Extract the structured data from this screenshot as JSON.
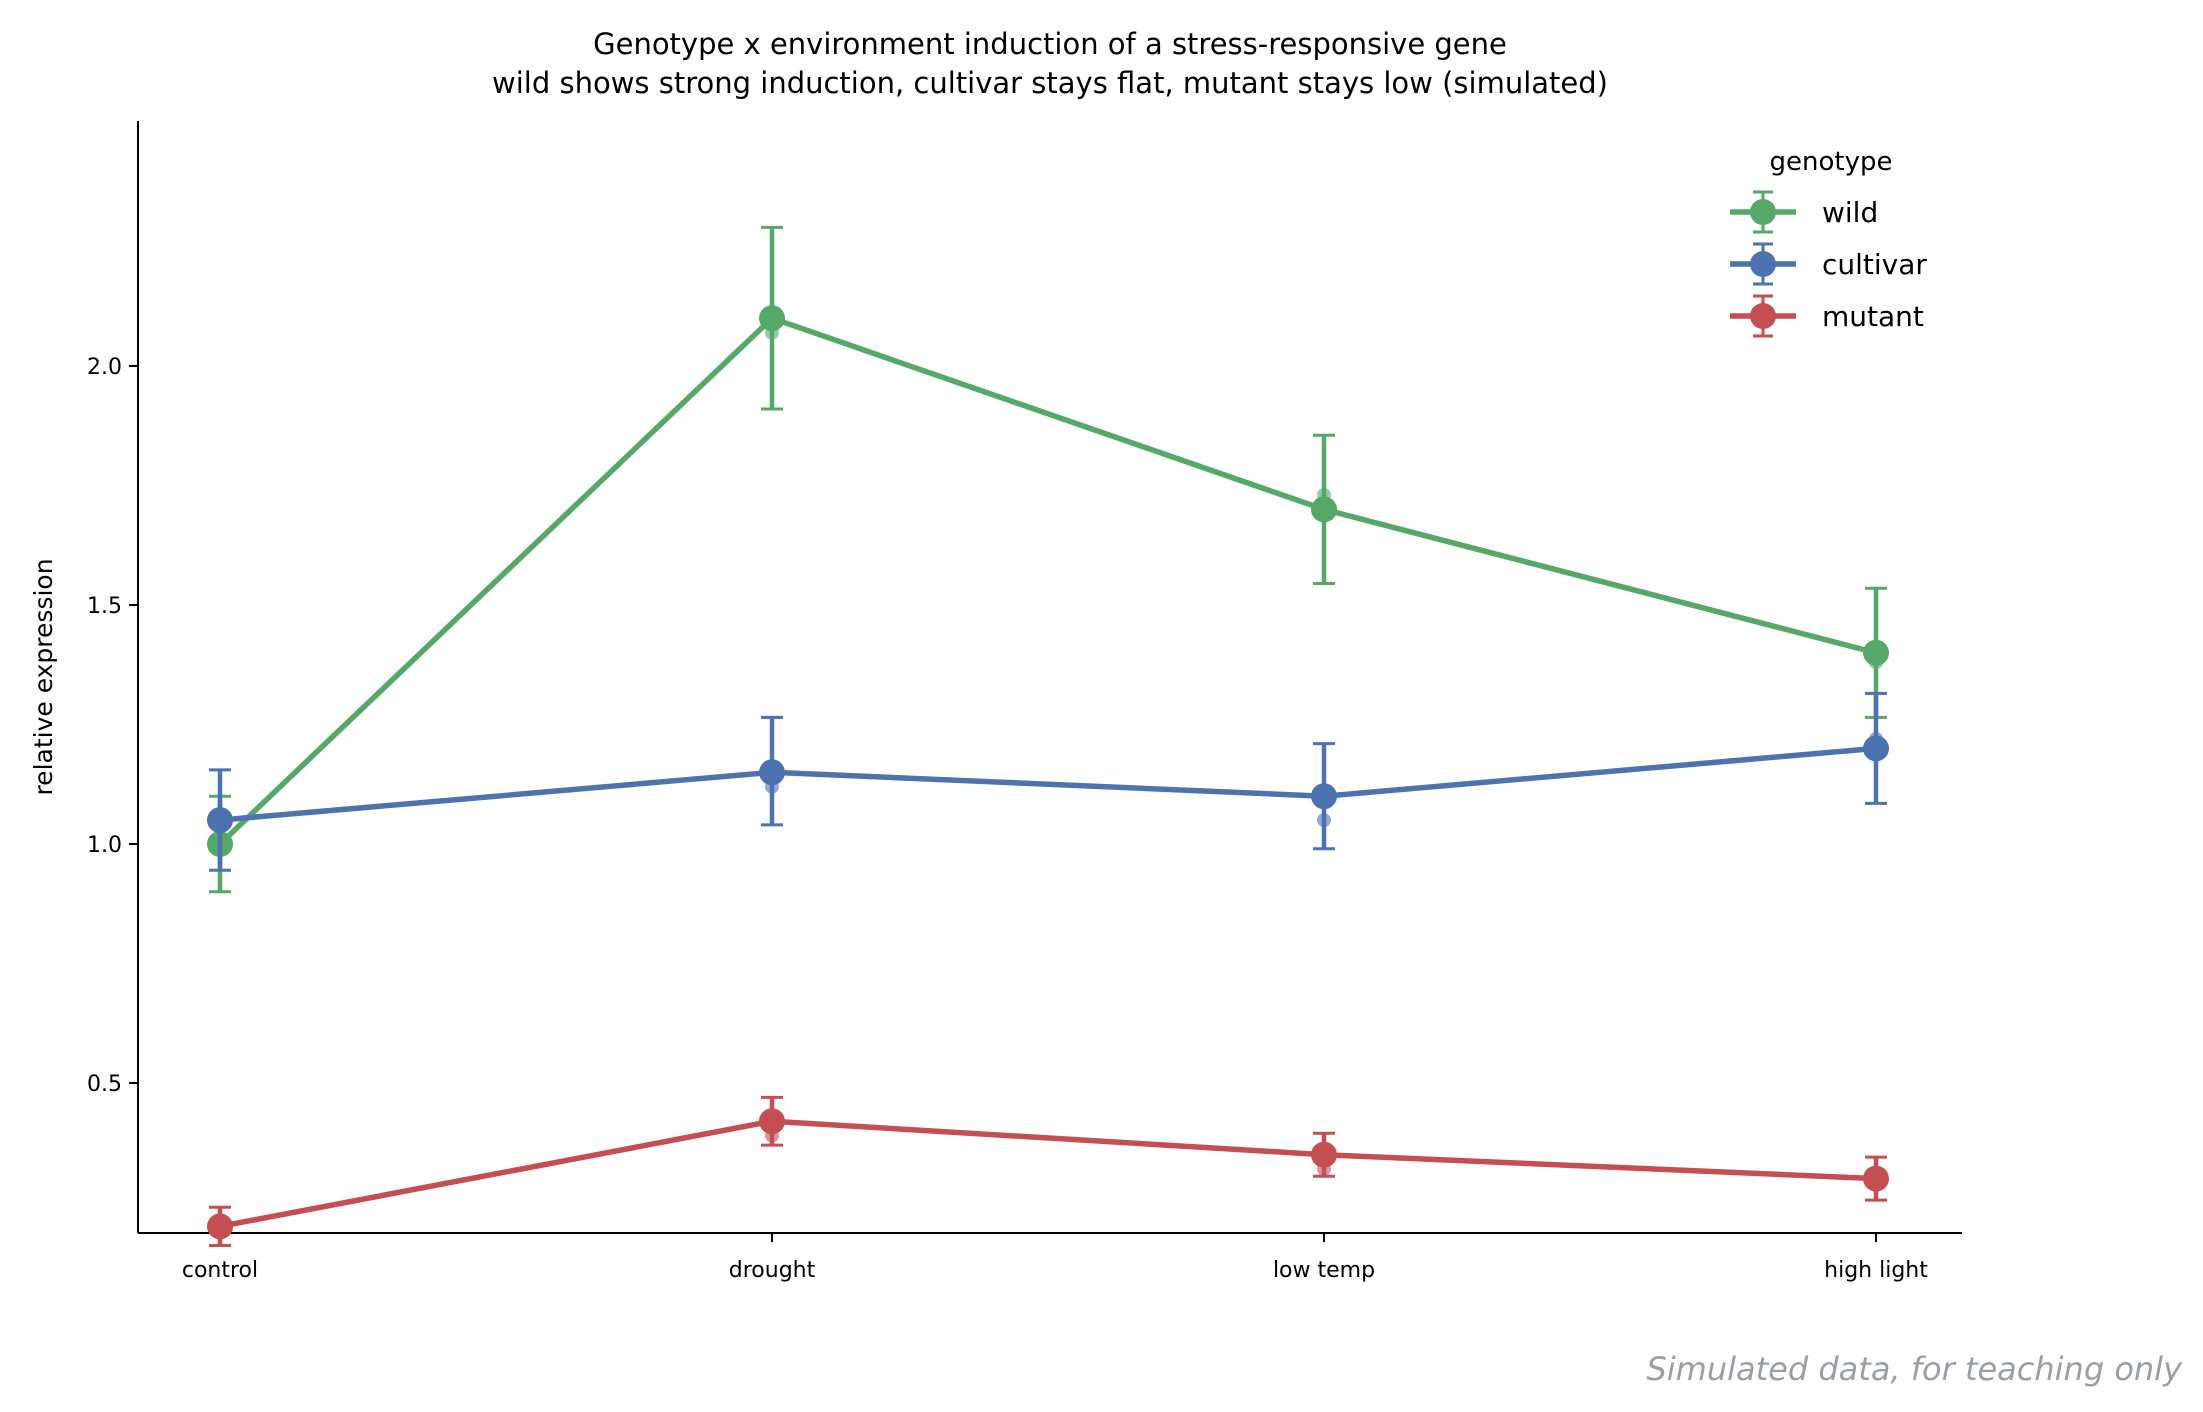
{
  "chart_data": {
    "type": "line",
    "title": "Genotype x environment induction of a stress-responsive gene",
    "subtitle": "wild shows strong induction, cultivar stays flat, mutant stays low (simulated)",
    "xlabel": "",
    "ylabel": "relative expression",
    "categories": [
      "control",
      "drought",
      "low temp",
      "high light"
    ],
    "ylim": [
      0.06,
      2.4
    ],
    "yticks": [
      0.5,
      1.0,
      1.5,
      2.0
    ],
    "ytick_labels": [
      "0.5",
      "1.0",
      "1.5",
      "2.0"
    ],
    "grid": false,
    "legend": {
      "title": "genotype",
      "position": "top-right"
    },
    "series": [
      {
        "name": "wild",
        "color": "#55a868",
        "values": [
          1.0,
          2.1,
          1.7,
          1.4
        ],
        "err_low": [
          0.9,
          1.91,
          1.545,
          1.265
        ],
        "err_high": [
          1.1,
          2.29,
          1.855,
          1.535
        ],
        "replicates": [
          [
            1.0
          ],
          [
            2.07
          ],
          [
            1.73
          ],
          [
            1.38
          ]
        ]
      },
      {
        "name": "cultivar",
        "color": "#4c72b0",
        "values": [
          1.05,
          1.15,
          1.1,
          1.2
        ],
        "err_low": [
          0.945,
          1.04,
          0.99,
          1.085
        ],
        "err_high": [
          1.155,
          1.265,
          1.21,
          1.315
        ],
        "replicates": [
          [
            1.04
          ],
          [
            1.12
          ],
          [
            1.05
          ],
          [
            1.22
          ]
        ]
      },
      {
        "name": "mutant",
        "color": "#c44e52",
        "values": [
          0.2,
          0.42,
          0.35,
          0.3
        ],
        "err_low": [
          0.16,
          0.37,
          0.305,
          0.255
        ],
        "err_high": [
          0.24,
          0.47,
          0.395,
          0.345
        ],
        "replicates": [
          [
            0.19
          ],
          [
            0.39
          ],
          [
            0.32
          ],
          [
            0.3
          ]
        ]
      }
    ]
  },
  "footnote": "Simulated data, for teaching only"
}
